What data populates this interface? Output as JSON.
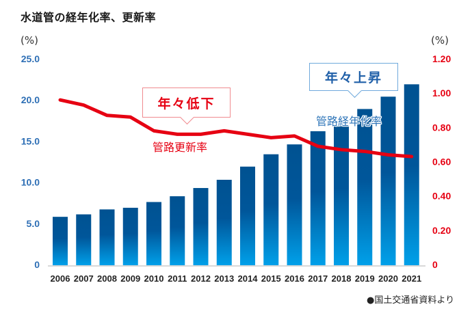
{
  "chart_data": {
    "type": "bar+line",
    "title": "水道管の経年化率、更新率",
    "categories": [
      "2006",
      "2007",
      "2008",
      "2009",
      "2010",
      "2011",
      "2012",
      "2013",
      "2014",
      "2015",
      "2016",
      "2017",
      "2018",
      "2019",
      "2020",
      "2021"
    ],
    "series": [
      {
        "name": "管路経年化率",
        "type": "bar",
        "axis": "left",
        "color": "#0a5c9e",
        "values": [
          5.8,
          6.1,
          6.7,
          6.9,
          7.6,
          8.3,
          9.3,
          10.3,
          11.9,
          13.4,
          14.6,
          16.2,
          16.9,
          18.9,
          20.4,
          21.9
        ]
      },
      {
        "name": "管路更新率",
        "type": "line",
        "axis": "right",
        "color": "#e60012",
        "values": [
          0.96,
          0.93,
          0.87,
          0.86,
          0.78,
          0.76,
          0.76,
          0.78,
          0.76,
          0.74,
          0.75,
          0.69,
          0.67,
          0.66,
          0.64,
          0.63
        ]
      }
    ],
    "y_left": {
      "label": "(%)",
      "ylim": [
        0,
        25
      ],
      "ticks": [
        0,
        5,
        10,
        15,
        20,
        25
      ],
      "tick_labels": [
        "0",
        "5.0",
        "10.0",
        "15.0",
        "20.0",
        "25.0"
      ],
      "color": "#2e6fb5"
    },
    "y_right": {
      "label": "(%)",
      "ylim": [
        0,
        1.2
      ],
      "ticks": [
        0,
        0.2,
        0.4,
        0.6,
        0.8,
        1.0,
        1.2
      ],
      "tick_labels": [
        "0",
        "0.20",
        "0.40",
        "0.60",
        "0.80",
        "1.00",
        "1.20"
      ],
      "color": "#e60012"
    },
    "grid": false,
    "annotations": [
      {
        "text": "年々低下",
        "target": "管路更新率",
        "style": "callout",
        "color": "#e60012"
      },
      {
        "text": "年々上昇",
        "target": "管路経年化率",
        "style": "callout",
        "color": "#1f5fa8"
      }
    ],
    "series_labels": [
      {
        "text": "管路更新率",
        "color": "#e60012"
      },
      {
        "text": "管路経年化率",
        "color": "#2d74b8"
      }
    ],
    "source": "●国土交通省資料より"
  },
  "units": {
    "left": "(%)",
    "right": "(%)"
  },
  "callouts": {
    "red": "年々低下",
    "blue": "年々上昇"
  },
  "labels": {
    "renewal": "管路更新率",
    "aging": "管路経年化率"
  },
  "source": "●国土交通省資料より",
  "colors": {
    "bar_top": "#005291",
    "bar_bottom": "#00a0e9",
    "line": "#e60012",
    "left_axis": "#2e6fb5",
    "right_axis": "#e60012"
  }
}
